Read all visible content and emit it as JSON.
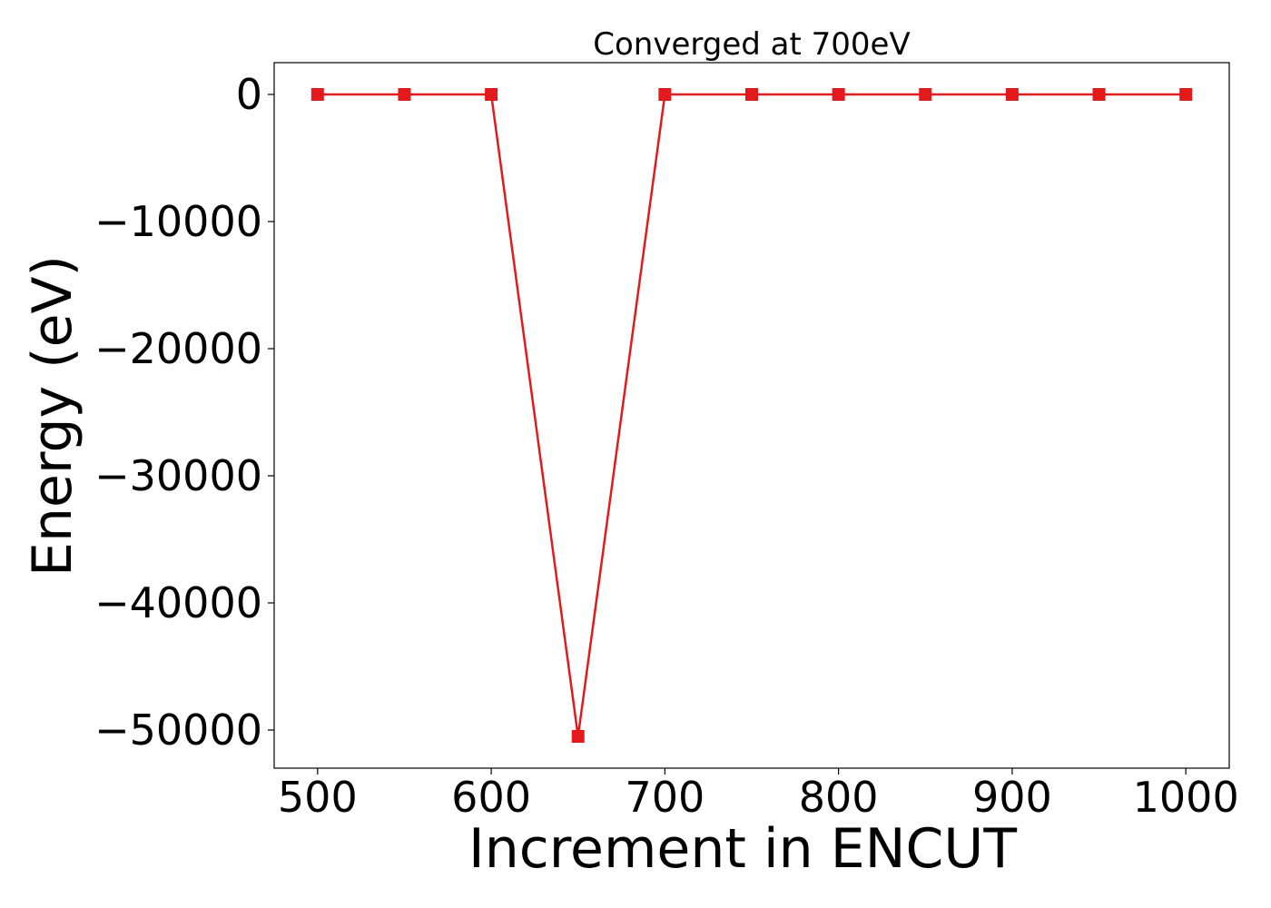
{
  "chart_data": {
    "type": "line",
    "title": "Converged at 700eV",
    "xlabel": "Increment in ENCUT",
    "ylabel": "Energy (eV)",
    "xlim": [
      475,
      1025
    ],
    "ylim": [
      -53000,
      2500
    ],
    "xticks": [
      500,
      600,
      700,
      800,
      900,
      1000
    ],
    "yticks": [
      0,
      -10000,
      -20000,
      -30000,
      -40000,
      -50000
    ],
    "ytick_labels": [
      "0",
      "−10000",
      "−20000",
      "−30000",
      "−40000",
      "−50000"
    ],
    "grid": false,
    "series": [
      {
        "x": [
          500,
          550,
          600,
          650,
          700,
          750,
          800,
          850,
          900,
          950,
          1000
        ],
        "y": [
          0,
          0,
          0,
          -50500,
          0,
          0,
          0,
          0,
          0,
          0,
          0
        ],
        "color": "#e31a1c",
        "marker": "square"
      }
    ]
  }
}
